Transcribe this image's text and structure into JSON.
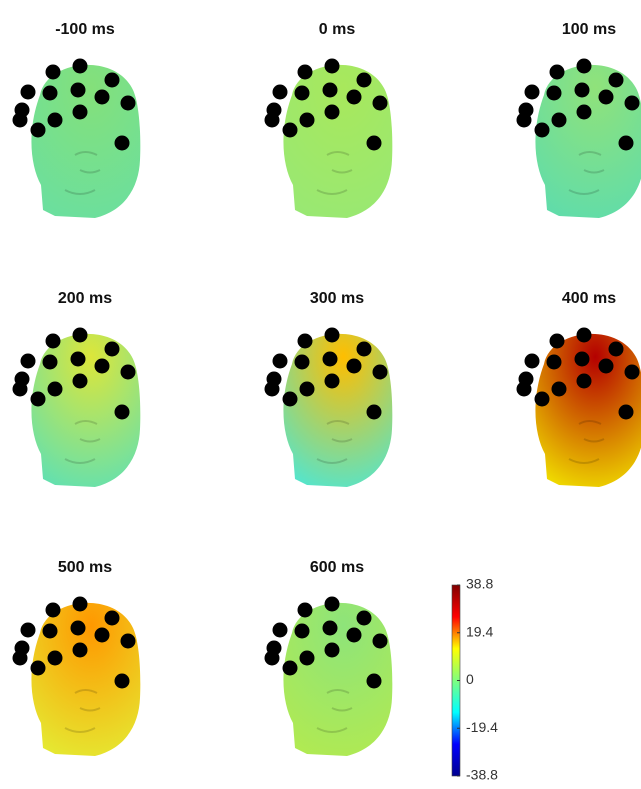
{
  "chart_data": {
    "type": "topoplot",
    "panels": [
      {
        "title": "-100 ms",
        "colors": [
          "#84e07a",
          "#6adfa0"
        ]
      },
      {
        "title": "0 ms",
        "colors": [
          "#a8e85c",
          "#98e874"
        ]
      },
      {
        "title": "100 ms",
        "colors": [
          "#90e27a",
          "#5edcac"
        ]
      },
      {
        "title": "200 ms",
        "colors": [
          "#dce63a",
          "#5ee0b4"
        ]
      },
      {
        "title": "300 ms",
        "colors": [
          "#ffbe00",
          "#4ee6d4"
        ]
      },
      {
        "title": "400 ms",
        "colors": [
          "#b40000",
          "#f2e400"
        ]
      },
      {
        "title": "500 ms",
        "colors": [
          "#ff9800",
          "#e4ec34"
        ]
      },
      {
        "title": "600 ms",
        "colors": [
          "#8ee47a",
          "#b2ea50"
        ]
      }
    ],
    "colorbar": {
      "clim": [
        -38.8,
        38.8
      ],
      "ticks": [
        -38.8,
        -19.4,
        0,
        19.4,
        38.8
      ],
      "colormap": [
        "#00008f",
        "#0000ff",
        "#00ffff",
        "#7fff7f",
        "#ffff00",
        "#ff0000",
        "#800000"
      ]
    }
  }
}
